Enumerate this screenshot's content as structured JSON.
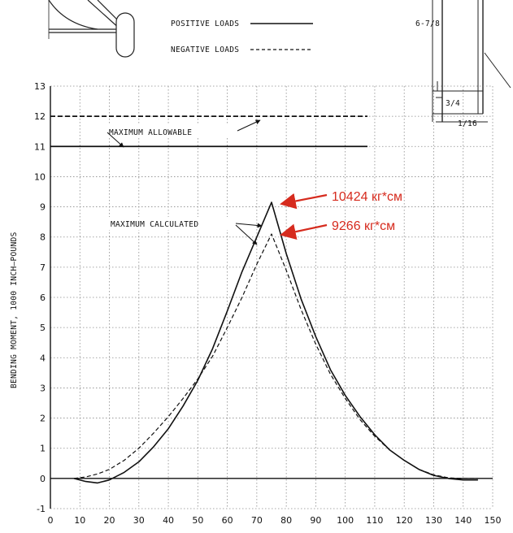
{
  "legend": {
    "positive_label": "POSITIVE LOADS",
    "negative_label": "NEGATIVE LOADS"
  },
  "diagram": {
    "dim_height": "6-7/8",
    "dim_small": "3/4",
    "dim_width": "1/16"
  },
  "annotations": {
    "max_allowable": "MAXIMUM ALLOWABLE",
    "max_calculated": "MAXIMUM CALCULATED",
    "callout_positive": "10424 кг*см",
    "callout_negative": "9266 кг*см"
  },
  "colors": {
    "callout": "#d62b1e",
    "line": "#111111",
    "grid": "#8a8a8a"
  },
  "chart_data": {
    "type": "line",
    "title": "",
    "xlabel": "",
    "ylabel": "BENDING MOMENT, 1000 INCH–POUNDS",
    "xlim": [
      0,
      150
    ],
    "ylim": [
      -1,
      13
    ],
    "x_ticks": [
      0,
      10,
      20,
      30,
      40,
      50,
      60,
      70,
      80,
      90,
      100,
      110,
      120,
      130,
      140,
      150
    ],
    "y_ticks": [
      -1,
      0,
      1,
      2,
      3,
      4,
      5,
      6,
      7,
      8,
      9,
      10,
      11,
      12,
      13
    ],
    "grid": true,
    "reference_lines": [
      {
        "name": "POSITIVE LOADS",
        "y": 11
      },
      {
        "name": "NEGATIVE LOADS",
        "y": 12
      }
    ],
    "series": [
      {
        "name": "POSITIVE LOADS",
        "x": [
          8,
          12,
          16,
          20,
          25,
          30,
          35,
          40,
          45,
          50,
          55,
          60,
          65,
          70,
          75,
          80,
          85,
          90,
          95,
          100,
          105,
          110,
          115,
          120,
          125,
          130,
          135,
          140,
          145
        ],
        "y": [
          0,
          -0.1,
          -0.15,
          -0.05,
          0.2,
          0.55,
          1.05,
          1.65,
          2.4,
          3.25,
          4.3,
          5.55,
          6.85,
          8.0,
          9.15,
          7.45,
          5.95,
          4.7,
          3.6,
          2.75,
          2.05,
          1.45,
          0.95,
          0.6,
          0.3,
          0.1,
          0.0,
          -0.05,
          -0.05
        ]
      },
      {
        "name": "NEGATIVE LOADS",
        "x": [
          8,
          12,
          16,
          20,
          25,
          30,
          35,
          40,
          45,
          50,
          55,
          60,
          65,
          70,
          75,
          80,
          85,
          90,
          95,
          100,
          105,
          110,
          115,
          120,
          125,
          130,
          135,
          140,
          145
        ],
        "y": [
          0,
          0.05,
          0.15,
          0.3,
          0.6,
          1.0,
          1.5,
          2.05,
          2.65,
          3.3,
          4.05,
          5.0,
          6.0,
          7.1,
          8.1,
          6.9,
          5.6,
          4.45,
          3.45,
          2.65,
          1.95,
          1.4,
          0.95,
          0.6,
          0.3,
          0.12,
          0.02,
          0.0,
          0.0
        ]
      }
    ]
  }
}
